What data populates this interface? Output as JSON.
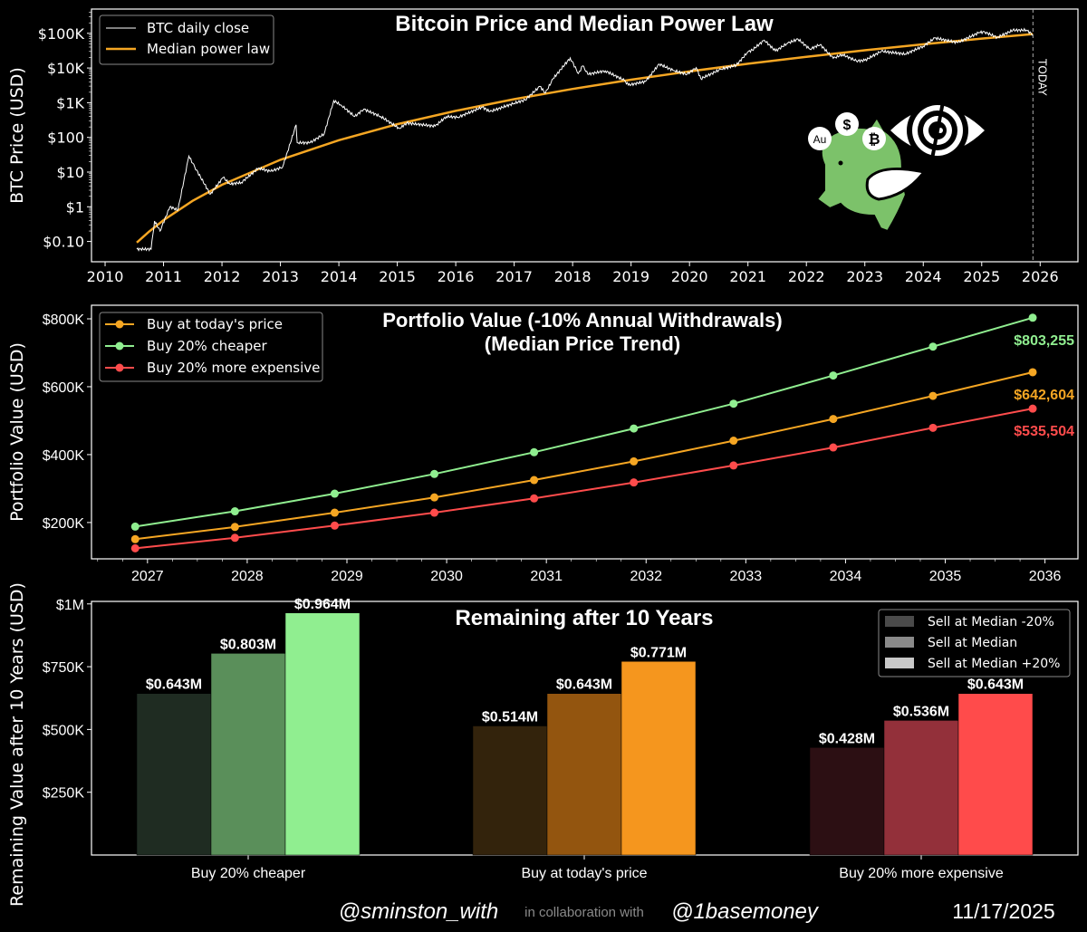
{
  "chart_data": [
    {
      "type": "line",
      "title": "Bitcoin Price and Median Power Law",
      "ylabel": "BTC Price (USD)",
      "y_scale": "log",
      "ylim": [
        0.026,
        500000
      ],
      "xlim": [
        "2009-10-08",
        "2026-08-25"
      ],
      "yticks": [
        {
          "value": 0.1,
          "label": "$0.10"
        },
        {
          "value": 1,
          "label": "$1"
        },
        {
          "value": 10,
          "label": "$10"
        },
        {
          "value": 100,
          "label": "$100"
        },
        {
          "value": 1000,
          "label": "$1K"
        },
        {
          "value": 10000,
          "label": "$10K"
        },
        {
          "value": 100000,
          "label": "$100K"
        }
      ],
      "xticks": [
        "2010",
        "2011",
        "2012",
        "2013",
        "2014",
        "2015",
        "2016",
        "2017",
        "2018",
        "2019",
        "2020",
        "2021",
        "2022",
        "2023",
        "2024",
        "2025",
        "2026"
      ],
      "legend": "top-left",
      "grid": false,
      "annotation": {
        "label": "TODAY",
        "date": "2025-11-17"
      },
      "series": [
        {
          "name": "BTC daily close",
          "color": "#ffffff",
          "points": [
            [
              "2010-07-18",
              0.06
            ],
            [
              "2010-10-15",
              0.06
            ],
            [
              "2010-11-06",
              0.39
            ],
            [
              "2010-12-10",
              0.2
            ],
            [
              "2011-02-10",
              1.0
            ],
            [
              "2011-04-01",
              0.8
            ],
            [
              "2011-06-08",
              29
            ],
            [
              "2011-07-15",
              14
            ],
            [
              "2011-10-20",
              2.3
            ],
            [
              "2012-01-08",
              7
            ],
            [
              "2012-02-20",
              4.5
            ],
            [
              "2012-05-01",
              5
            ],
            [
              "2012-08-16",
              13
            ],
            [
              "2012-11-01",
              10.5
            ],
            [
              "2013-01-15",
              14
            ],
            [
              "2013-04-09",
              230
            ],
            [
              "2013-04-16",
              70
            ],
            [
              "2013-07-05",
              70
            ],
            [
              "2013-10-01",
              125
            ],
            [
              "2013-11-30",
              1150
            ],
            [
              "2014-01-15",
              850
            ],
            [
              "2014-04-10",
              400
            ],
            [
              "2014-06-05",
              650
            ],
            [
              "2014-09-20",
              400
            ],
            [
              "2015-01-14",
              180
            ],
            [
              "2015-03-01",
              260
            ],
            [
              "2015-08-25",
              210
            ],
            [
              "2015-11-04",
              400
            ],
            [
              "2016-01-15",
              380
            ],
            [
              "2016-06-16",
              750
            ],
            [
              "2016-08-02",
              550
            ],
            [
              "2016-12-31",
              960
            ],
            [
              "2017-03-10",
              1200
            ],
            [
              "2017-06-11",
              2950
            ],
            [
              "2017-07-15",
              1900
            ],
            [
              "2017-09-01",
              4900
            ],
            [
              "2017-12-17",
              19500
            ],
            [
              "2018-02-06",
              6900
            ],
            [
              "2018-03-05",
              11500
            ],
            [
              "2018-04-06",
              6600
            ],
            [
              "2018-07-24",
              8300
            ],
            [
              "2018-11-20",
              4400
            ],
            [
              "2018-12-15",
              3200
            ],
            [
              "2019-04-01",
              4100
            ],
            [
              "2019-06-26",
              13000
            ],
            [
              "2019-09-25",
              8400
            ],
            [
              "2019-12-17",
              6600
            ],
            [
              "2020-02-12",
              10300
            ],
            [
              "2020-03-12",
              4900
            ],
            [
              "2020-07-15",
              9200
            ],
            [
              "2020-10-20",
              12000
            ],
            [
              "2020-12-31",
              29000
            ],
            [
              "2021-01-28",
              33000
            ],
            [
              "2021-04-13",
              63500
            ],
            [
              "2021-06-22",
              31000
            ],
            [
              "2021-09-06",
              52000
            ],
            [
              "2021-11-10",
              67500
            ],
            [
              "2022-01-23",
              35000
            ],
            [
              "2022-03-28",
              47500
            ],
            [
              "2022-06-18",
              19000
            ],
            [
              "2022-08-14",
              24500
            ],
            [
              "2022-11-09",
              16000
            ],
            [
              "2022-12-31",
              16500
            ],
            [
              "2023-04-14",
              30500
            ],
            [
              "2023-09-11",
              25200
            ],
            [
              "2023-12-31",
              42500
            ],
            [
              "2024-03-14",
              73000
            ],
            [
              "2024-08-05",
              54000
            ],
            [
              "2024-12-17",
              106000
            ],
            [
              "2025-01-20",
              109000
            ],
            [
              "2025-04-08",
              76000
            ],
            [
              "2025-07-14",
              122000
            ],
            [
              "2025-10-06",
              124000
            ],
            [
              "2025-11-17",
              92000
            ]
          ]
        },
        {
          "name": "Median power law",
          "color": "#f5a623",
          "points": [
            [
              "2010-07-18",
              0.093
            ],
            [
              "2010-10-01",
              0.19
            ],
            [
              "2011-01-01",
              0.41
            ],
            [
              "2011-07-01",
              1.48
            ],
            [
              "2012-01-01",
              4.3
            ],
            [
              "2013-01-01",
              22.6
            ],
            [
              "2014-01-01",
              83
            ],
            [
              "2015-01-01",
              240
            ],
            [
              "2016-01-01",
              582
            ],
            [
              "2017-01-01",
              1262
            ],
            [
              "2018-01-01",
              2495
            ],
            [
              "2019-01-01",
              4600
            ],
            [
              "2020-01-01",
              8000
            ],
            [
              "2021-01-01",
              13250
            ],
            [
              "2022-01-01",
              21100
            ],
            [
              "2023-01-01",
              32400
            ],
            [
              "2024-01-01",
              48300
            ],
            [
              "2025-01-01",
              70300
            ],
            [
              "2025-11-17",
              95000
            ]
          ]
        }
      ]
    },
    {
      "type": "line",
      "title": "Portfolio Value (-10% Annual Withdrawals)",
      "subtitle": "(Median Price Trend)",
      "ylabel": "Portfolio Value (USD)",
      "ylim": [
        93000,
        840000
      ],
      "xlim": [
        "2026-06-10",
        "2036-05-01"
      ],
      "yticks": [
        {
          "value": 200000,
          "label": "$200K"
        },
        {
          "value": 400000,
          "label": "$400K"
        },
        {
          "value": 600000,
          "label": "$600K"
        },
        {
          "value": 800000,
          "label": "$800K"
        }
      ],
      "xticks": [
        "2027",
        "2028",
        "2029",
        "2030",
        "2031",
        "2032",
        "2033",
        "2034",
        "2035",
        "2036"
      ],
      "legend": "top-left",
      "grid": false,
      "x": [
        "2026-11-17",
        "2027-11-17",
        "2028-11-17",
        "2029-11-17",
        "2030-11-17",
        "2031-11-17",
        "2032-11-17",
        "2033-11-17",
        "2034-11-17",
        "2035-11-17"
      ],
      "series": [
        {
          "name": "Buy at today's price",
          "color": "#f5a623",
          "values": [
            151000,
            187000,
            229000,
            274000,
            325000,
            380000,
            441000,
            505000,
            573000,
            642604
          ],
          "end_label": "$642,604"
        },
        {
          "name": "Buy 20% cheaper",
          "color": "#90ee90",
          "values": [
            188000,
            233000,
            285000,
            343000,
            407000,
            477000,
            550000,
            633000,
            718000,
            803255
          ],
          "end_label": "$803,255"
        },
        {
          "name": "Buy 20% more expensive",
          "color": "#ff4c4c",
          "values": [
            124000,
            155000,
            191000,
            229000,
            271000,
            318000,
            368000,
            421000,
            479000,
            535504
          ],
          "end_label": "$535,504"
        }
      ]
    },
    {
      "type": "bar",
      "title": "Remaining after 10 Years",
      "ylabel": "Remaining Value after 10 Years (USD)",
      "ylim": [
        0,
        1010000
      ],
      "yticks": [
        {
          "value": 250000,
          "label": "$250K"
        },
        {
          "value": 500000,
          "label": "$500K"
        },
        {
          "value": 750000,
          "label": "$750K"
        },
        {
          "value": 1000000,
          "label": "$1M"
        }
      ],
      "categories": [
        "Buy 20% cheaper",
        "Buy at today's price",
        "Buy 20% more expensive"
      ],
      "legend": "top-right",
      "grid": false,
      "legend_entries": [
        {
          "name": "Sell at Median -20%",
          "color": "#4a4a4a"
        },
        {
          "name": "Sell at Median",
          "color": "#8a8a8a"
        },
        {
          "name": "Sell at Median +20%",
          "color": "#c8c8c8"
        }
      ],
      "series": [
        {
          "name": "Sell at Median -20%",
          "values": [
            643000,
            514000,
            428000
          ],
          "labels": [
            "$0.643M",
            "$0.514M",
            "$0.428M"
          ],
          "colors": [
            "#1f2c22",
            "#33230c",
            "#2c0f13"
          ]
        },
        {
          "name": "Sell at Median",
          "values": [
            803000,
            643000,
            536000
          ],
          "labels": [
            "$0.803M",
            "$0.643M",
            "$0.536M"
          ],
          "colors": [
            "#5a8f5a",
            "#93550f",
            "#93303a"
          ]
        },
        {
          "name": "Sell at Median +20%",
          "values": [
            964000,
            771000,
            643000
          ],
          "labels": [
            "$0.964M",
            "$0.771M",
            "$0.643M"
          ],
          "colors": [
            "#90ee90",
            "#f5961e",
            "#ff4b4b"
          ]
        }
      ]
    }
  ],
  "logo": {
    "coins": [
      "Au",
      "$",
      "₿"
    ],
    "icon": "flying-piggy-bank-eye-logo"
  },
  "footer": {
    "author": "@sminston_with",
    "collab_text": "in collaboration with",
    "partner": "@1basemoney",
    "date": "11/17/2025"
  }
}
